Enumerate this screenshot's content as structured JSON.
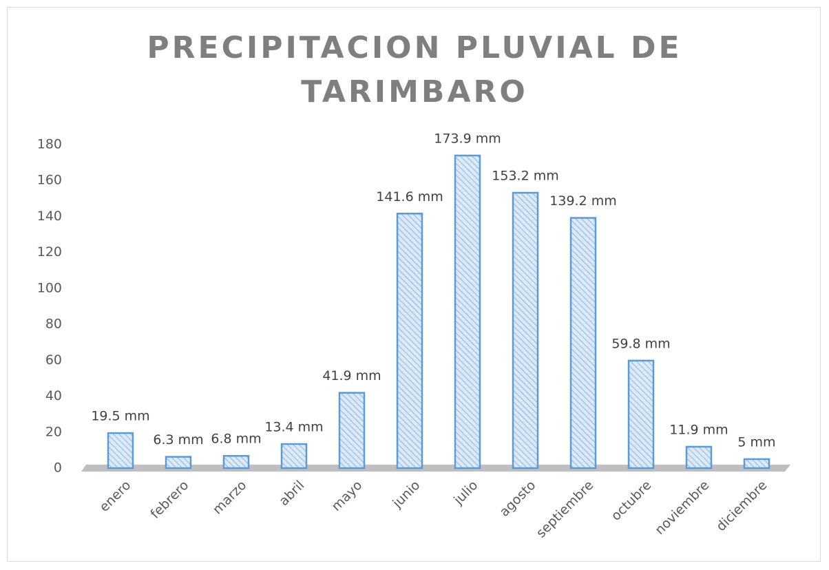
{
  "chart_data": {
    "type": "bar",
    "title": "PRECIPITACION PLUVIAL DE TARIMBARO",
    "categories": [
      "enero",
      "febrero",
      "marzo",
      "abril",
      "mayo",
      "junio",
      "julio",
      "agosto",
      "septiembre",
      "octubre",
      "noviembre",
      "diciembre"
    ],
    "values": [
      19.5,
      6.3,
      6.8,
      13.4,
      41.9,
      141.6,
      173.9,
      153.2,
      139.2,
      59.8,
      11.9,
      5
    ],
    "value_labels": [
      "19.5 mm",
      "6.3 mm",
      "6.8 mm",
      "13.4 mm",
      "41.9 mm",
      "141.6 mm",
      "173.9 mm",
      "153.2 mm",
      "139.2 mm",
      "59.8 mm",
      "11.9 mm",
      "5 mm"
    ],
    "color": "#5b9bd5",
    "ylim": [
      0,
      180
    ],
    "yticks": [
      0,
      20,
      40,
      60,
      80,
      100,
      120,
      140,
      160,
      180
    ],
    "grid": false
  }
}
